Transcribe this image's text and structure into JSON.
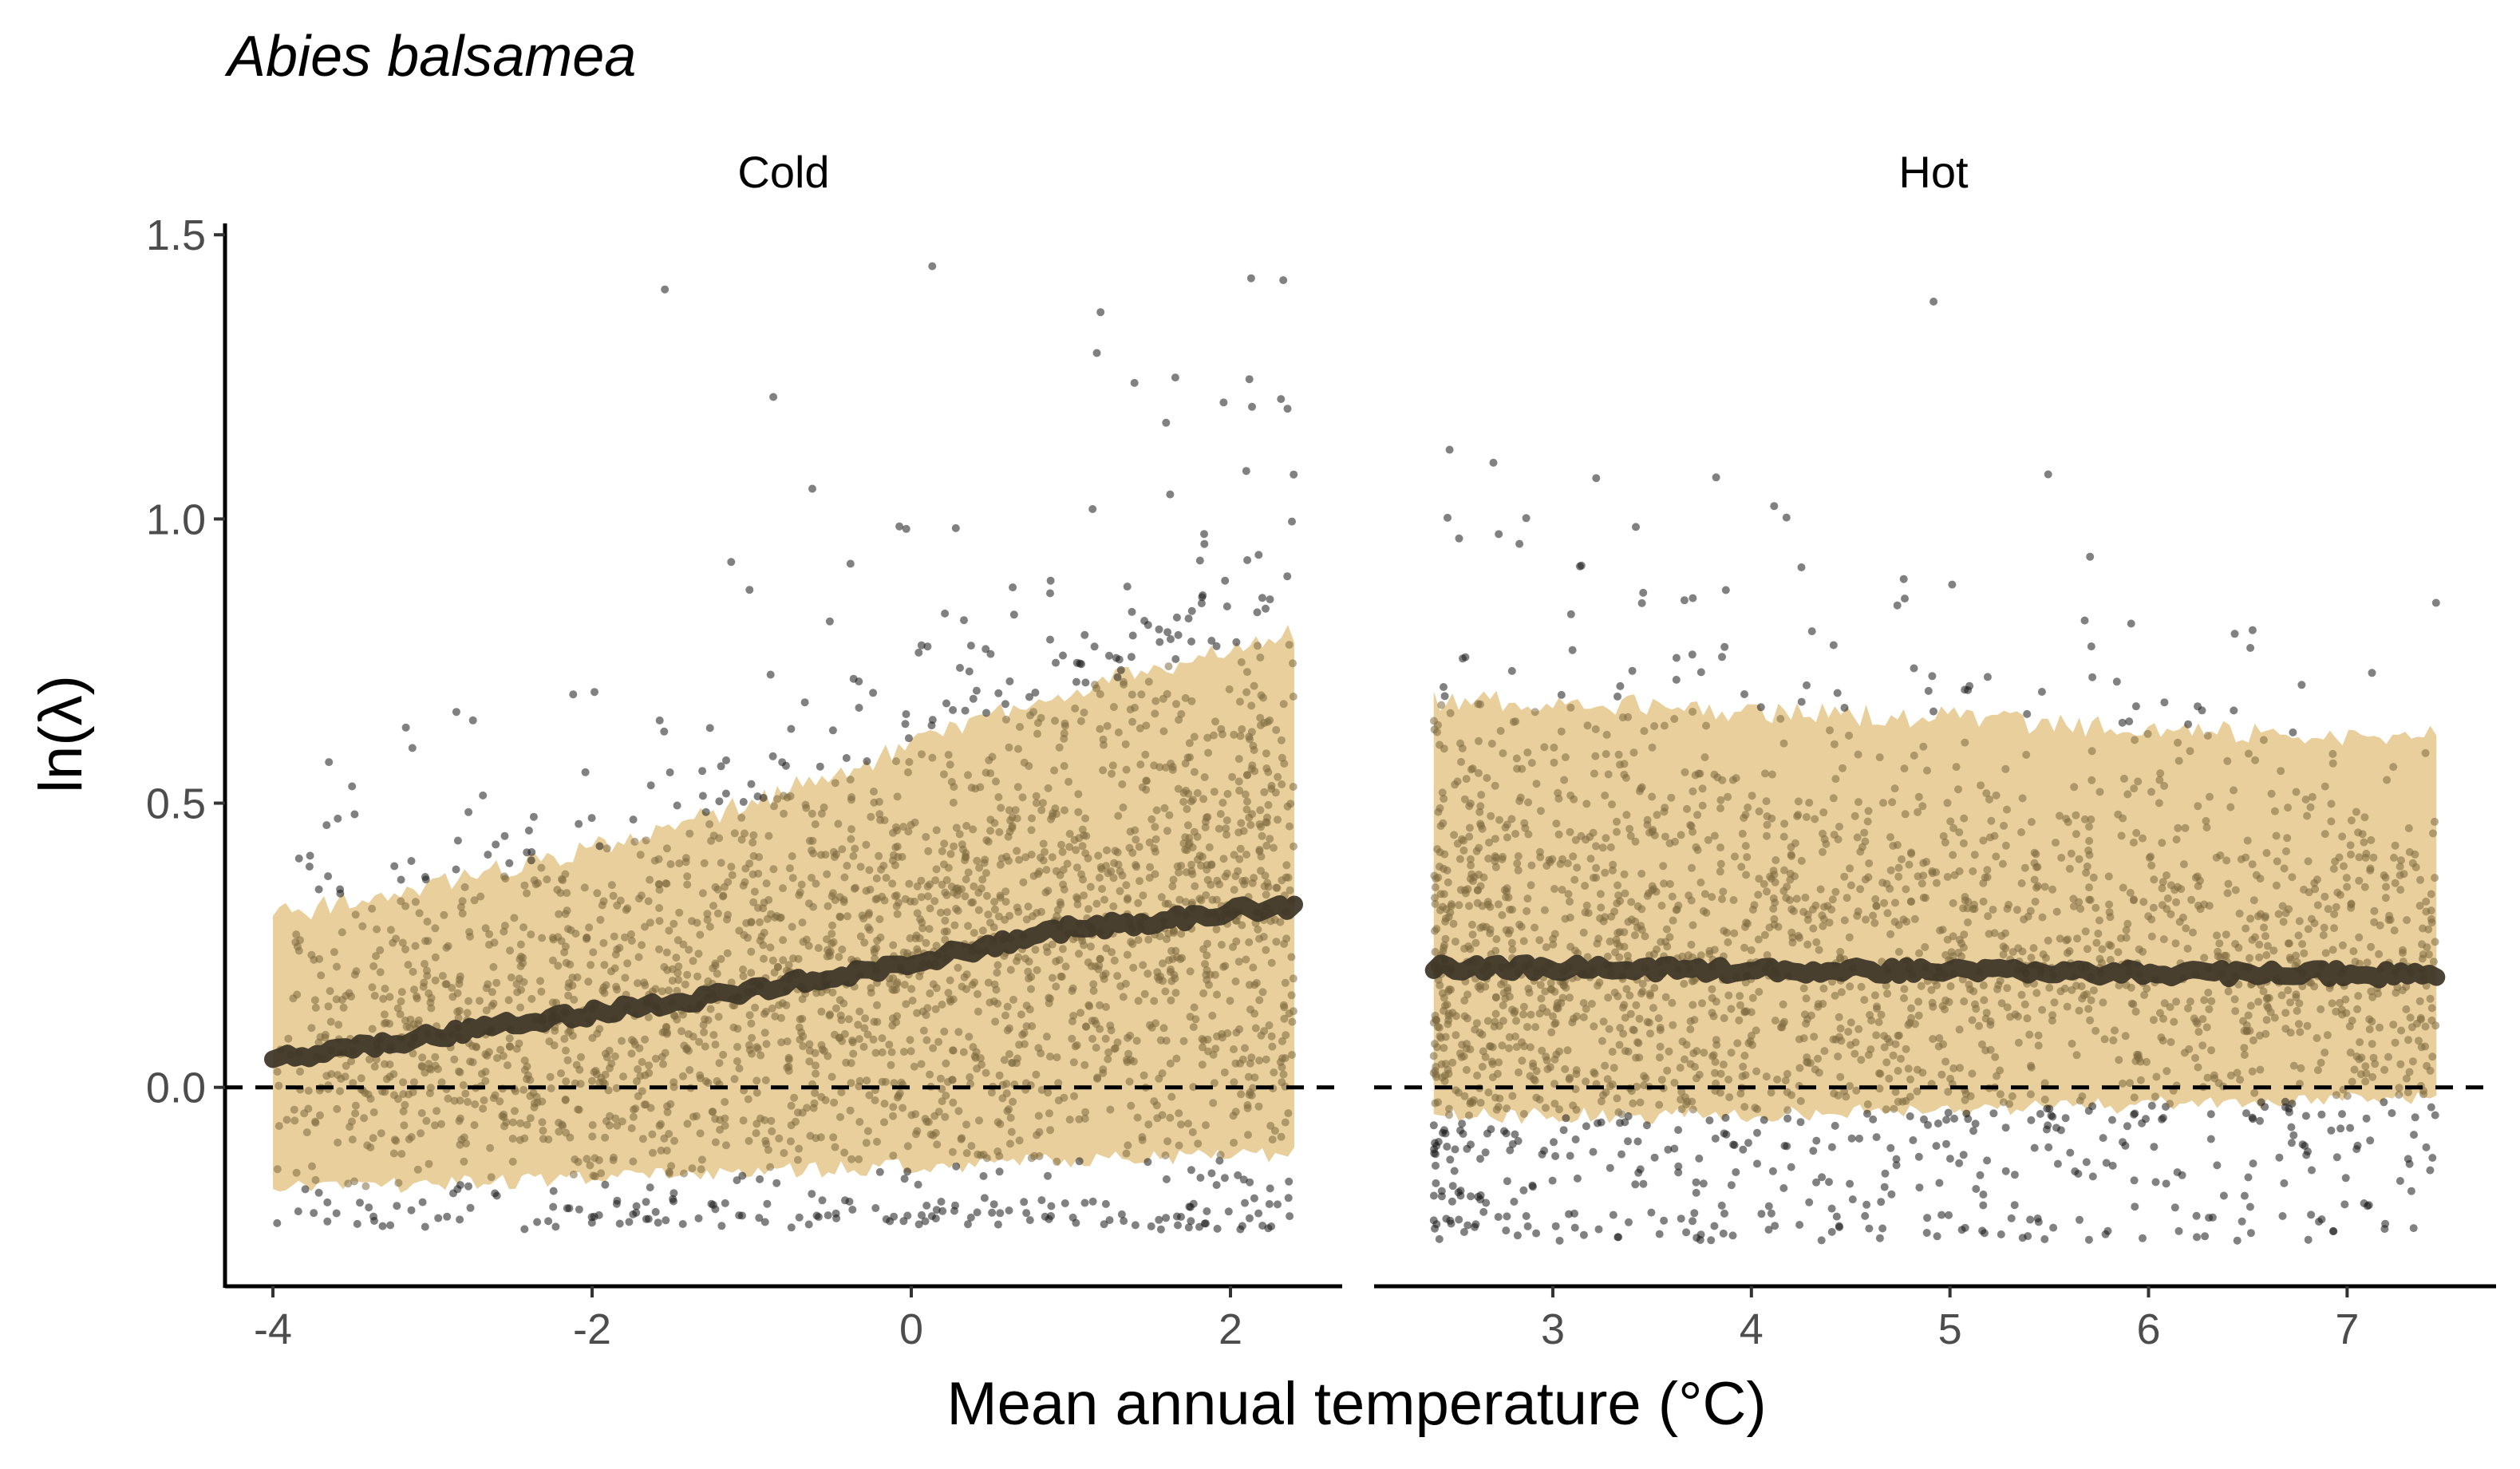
{
  "chart_data": {
    "type": "scatter",
    "title": "Abies balsamea",
    "xlabel": "Mean annual temperature (°C)",
    "ylabel": "ln(λ)",
    "ylim": [
      -0.35,
      1.52
    ],
    "yticks": [
      "0.0",
      "0.5",
      "1.0",
      "1.5"
    ],
    "ytick_values": [
      0,
      0.5,
      1.0,
      1.5
    ],
    "reference_line_y": 0,
    "grid": false,
    "colors": {
      "band": "#e8cf9c",
      "points_outside": "#1a1a1a",
      "points_inside": "#7d6a3f",
      "trend": "#3b3325"
    },
    "panels": [
      {
        "label": "Cold",
        "xlim": [
          -4.3,
          2.7
        ],
        "xticks": [
          "-4",
          "-2",
          "0",
          "2"
        ],
        "xtick_values": [
          -4,
          -2,
          0,
          2
        ],
        "x_range": [
          -4.0,
          2.4
        ],
        "band": {
          "x": [
            -4.0,
            -3.0,
            -2.0,
            -1.0,
            0.0,
            1.0,
            2.0,
            2.4
          ],
          "lower": [
            -0.18,
            -0.17,
            -0.16,
            -0.15,
            -0.14,
            -0.13,
            -0.12,
            -0.12
          ],
          "upper": [
            0.3,
            0.36,
            0.42,
            0.5,
            0.6,
            0.7,
            0.77,
            0.8
          ]
        },
        "trend": {
          "x": [
            -4.0,
            -3.0,
            -2.0,
            -1.0,
            0.0,
            1.0,
            1.5,
            2.0,
            2.4
          ],
          "y": [
            0.05,
            0.09,
            0.13,
            0.17,
            0.22,
            0.28,
            0.29,
            0.31,
            0.32
          ]
        },
        "point_count": 2600,
        "point_y_range": [
          -0.25,
          1.45
        ]
      },
      {
        "label": "Hot",
        "xlim": [
          2.1,
          7.75
        ],
        "xticks": [
          "3",
          "4",
          "5",
          "6",
          "7"
        ],
        "xtick_values": [
          3,
          4,
          5,
          6,
          7
        ],
        "x_range": [
          2.4,
          7.45
        ],
        "band": {
          "x": [
            2.4,
            3.0,
            4.0,
            5.0,
            6.0,
            7.0,
            7.45
          ],
          "lower": [
            -0.05,
            -0.05,
            -0.05,
            -0.04,
            -0.03,
            -0.02,
            -0.02
          ],
          "upper": [
            0.68,
            0.68,
            0.66,
            0.65,
            0.63,
            0.62,
            0.62
          ]
        },
        "trend": {
          "x": [
            2.4,
            3.0,
            4.0,
            5.0,
            6.0,
            7.0,
            7.45
          ],
          "y": [
            0.21,
            0.21,
            0.205,
            0.205,
            0.2,
            0.2,
            0.195
          ]
        },
        "point_count": 2400,
        "point_y_range": [
          -0.27,
          1.45
        ]
      }
    ]
  }
}
